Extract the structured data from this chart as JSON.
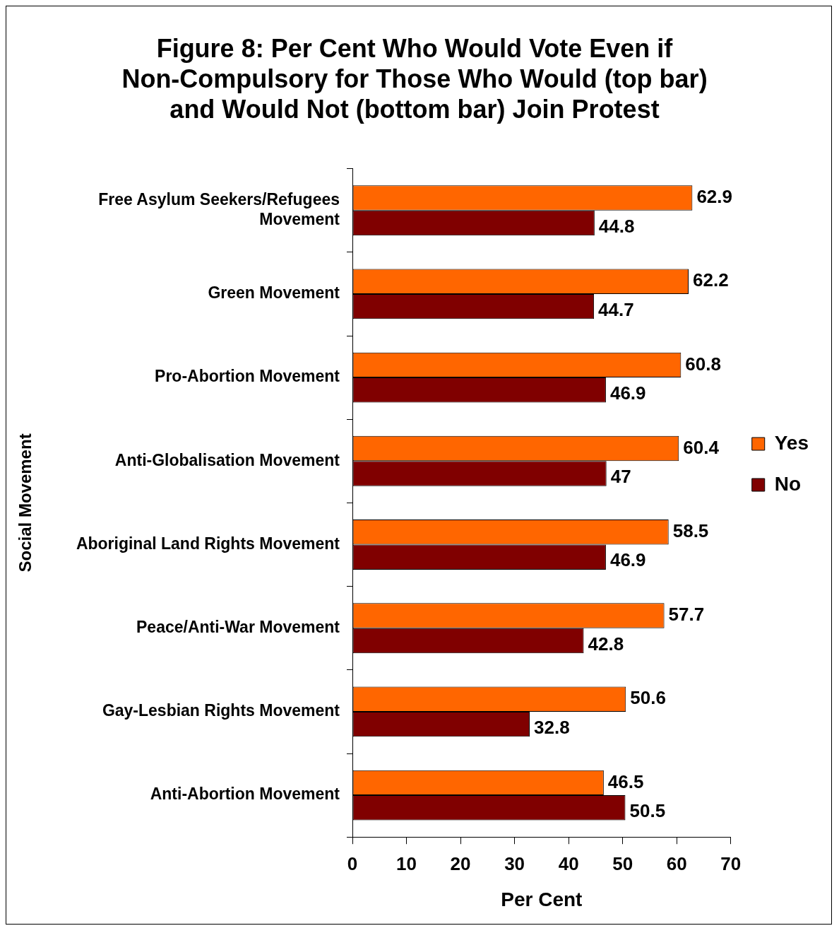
{
  "chart_data": {
    "type": "bar",
    "orientation": "horizontal",
    "title": "Figure 8: Per Cent Who Would Vote Even if Non-Compulsory for Those Who Would (top bar) and Would Not (bottom bar) Join Protest",
    "xlabel": "Per Cent",
    "ylabel": "Social Movement",
    "categories": [
      "Free Asylum Seekers/Refugees Movement",
      "Green Movement",
      "Pro-Abortion Movement",
      "Anti-Globalisation Movement",
      "Aboriginal Land Rights Movement",
      "Peace/Anti-War Movement",
      "Gay-Lesbian Rights Movement",
      "Anti-Abortion Movement"
    ],
    "series": [
      {
        "name": "Yes",
        "color": "#ff6600",
        "values": [
          62.9,
          62.2,
          60.8,
          60.4,
          58.5,
          57.7,
          50.6,
          46.5
        ]
      },
      {
        "name": "No",
        "color": "#800000",
        "values": [
          44.8,
          44.7,
          46.9,
          47,
          46.9,
          42.8,
          32.8,
          50.5
        ]
      }
    ],
    "xlim": [
      0,
      70
    ],
    "xticks": [
      0,
      10,
      20,
      30,
      40,
      50,
      60,
      70
    ],
    "grid": false,
    "legend": "right",
    "data_labels": true
  }
}
